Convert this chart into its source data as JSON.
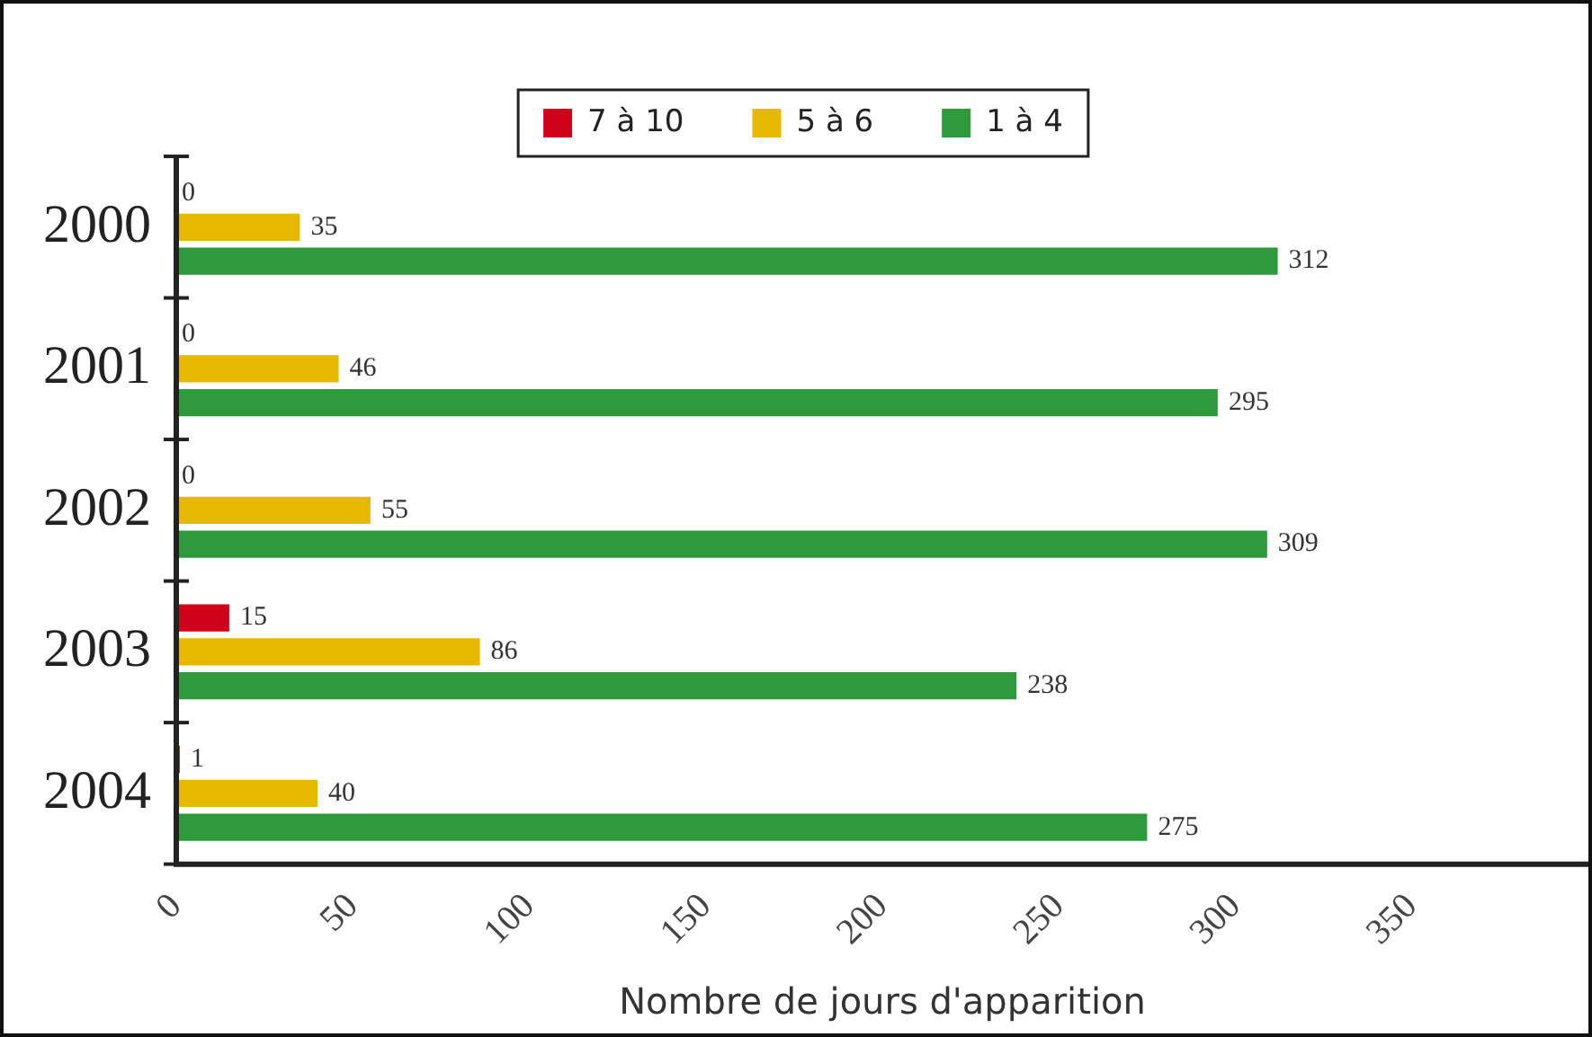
{
  "chart_data": {
    "type": "bar",
    "orientation": "horizontal",
    "xlabel": "Nombre de jours d'apparition",
    "categories": [
      "2000",
      "2001",
      "2002",
      "2003",
      "2004"
    ],
    "series": [
      {
        "name": "7 à 10",
        "color": "#d0021b",
        "values": [
          0,
          0,
          0,
          15,
          1
        ]
      },
      {
        "name": "5 à 6",
        "color": "#e6b800",
        "values": [
          35,
          46,
          55,
          86,
          40
        ]
      },
      {
        "name": "1 à 4",
        "color": "#2e9a3c",
        "values": [
          312,
          295,
          309,
          238,
          275
        ]
      }
    ],
    "xlim": [
      0,
      400
    ],
    "xticks": [
      0,
      50,
      100,
      150,
      200,
      250,
      300,
      350
    ],
    "grid": false,
    "legend": "top",
    "data_labels": true
  }
}
